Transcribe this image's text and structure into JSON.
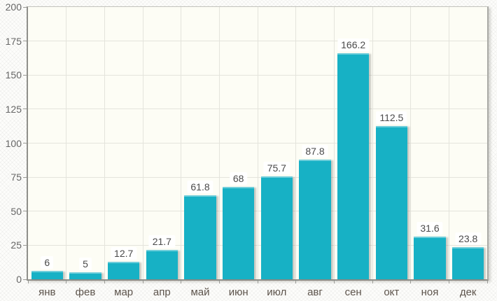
{
  "chart_data": {
    "type": "bar",
    "title": "",
    "xlabel": "",
    "ylabel": "",
    "categories": [
      "янв",
      "фев",
      "мар",
      "апр",
      "май",
      "июн",
      "июл",
      "авг",
      "сен",
      "окт",
      "ноя",
      "дек"
    ],
    "values": [
      6,
      5,
      12.7,
      21.7,
      61.8,
      68,
      75.7,
      87.8,
      166.2,
      112.5,
      31.6,
      23.8
    ],
    "value_labels": [
      "6",
      "5",
      "12.7",
      "21.7",
      "61.8",
      "68",
      "75.7",
      "87.8",
      "166.2",
      "112.5",
      "31.6",
      "23.8"
    ],
    "ylim": [
      0,
      200
    ],
    "ytick_step": 25,
    "yticks": [
      0,
      25,
      50,
      75,
      100,
      125,
      150,
      175,
      200
    ],
    "grid": true,
    "legend": "none",
    "bar_value_labels_shown": true,
    "colors": {
      "bar_fill": "#17b1c5",
      "plot_background": "#fdfdf5",
      "gridline": "#e4e4dc",
      "axis_line": "#8f8f8a",
      "tick_mark": "#9a9a95",
      "value_label_text": "#4a4a4a",
      "value_label_background": "#ffffff",
      "month_label_text": "#5d544c",
      "ytick_label_text": "#666666"
    }
  }
}
